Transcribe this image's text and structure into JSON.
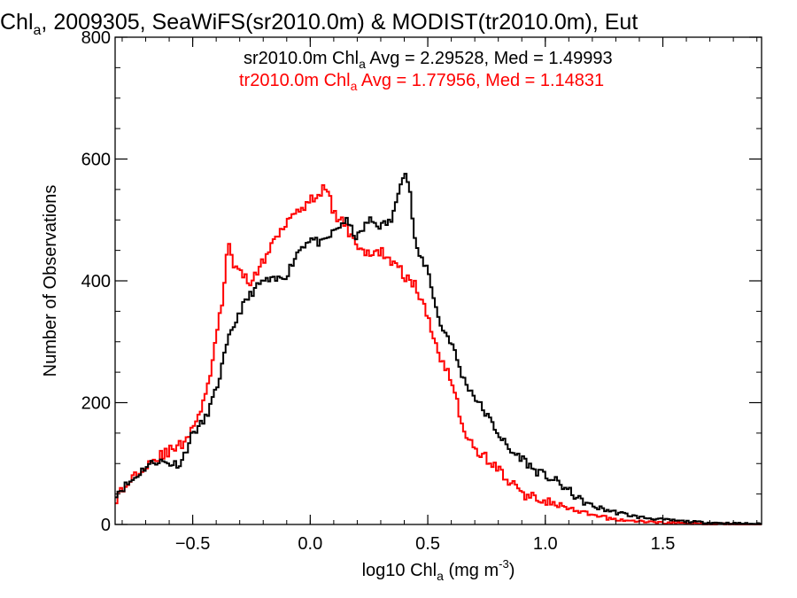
{
  "chart_data": {
    "type": "line",
    "title": {
      "prefix": "Chl",
      "sub": "a",
      "rest": ", 2009305, SeaWiFS(sr2010.0m) & MODIST(tr2010.0m), Eut"
    },
    "xlabel": {
      "prefix": "log10 Chl",
      "sub": "a",
      "rest": " (mg m",
      "sup": "-3",
      "end": ")"
    },
    "ylabel": "Number of Observations",
    "xlim": [
      -0.83,
      1.92
    ],
    "ylim": [
      0,
      800
    ],
    "xticks": [
      {
        "value": -0.5,
        "label": "−0.5"
      },
      {
        "value": 0.0,
        "label": "0.0"
      },
      {
        "value": 0.5,
        "label": "0.5"
      },
      {
        "value": 1.0,
        "label": "1.0"
      },
      {
        "value": 1.5,
        "label": "1.5"
      }
    ],
    "yticks": [
      {
        "value": 0,
        "label": "0"
      },
      {
        "value": 200,
        "label": "200"
      },
      {
        "value": 400,
        "label": "400"
      },
      {
        "value": 600,
        "label": "600"
      },
      {
        "value": 800,
        "label": "800"
      }
    ],
    "grid": false,
    "annotations": [
      {
        "prefix": "sr2010.0m Chl",
        "sub": "a",
        "rest": " Avg = 2.29528, Med = 1.49993",
        "color": "#000000"
      },
      {
        "prefix": "tr2010.0m Chl",
        "sub": "a",
        "rest": " Avg = 1.77956, Med = 1.14831",
        "color": "#ff0000"
      }
    ],
    "series": [
      {
        "color": "#000000",
        "x": [
          -0.83,
          -0.75,
          -0.7,
          -0.65,
          -0.6,
          -0.55,
          -0.5,
          -0.45,
          -0.4,
          -0.35,
          -0.3,
          -0.25,
          -0.2,
          -0.15,
          -0.1,
          -0.05,
          0.0,
          0.05,
          0.1,
          0.15,
          0.2,
          0.25,
          0.3,
          0.35,
          0.38,
          0.4,
          0.42,
          0.45,
          0.5,
          0.55,
          0.6,
          0.65,
          0.7,
          0.75,
          0.8,
          0.85,
          0.9,
          0.95,
          1.0,
          1.05,
          1.1,
          1.15,
          1.2,
          1.3,
          1.4,
          1.5,
          1.6,
          1.7,
          1.8,
          1.92
        ],
        "y": [
          50,
          75,
          95,
          105,
          100,
          100,
          150,
          170,
          220,
          300,
          350,
          380,
          400,
          400,
          410,
          450,
          470,
          460,
          480,
          500,
          470,
          500,
          490,
          500,
          560,
          580,
          560,
          450,
          420,
          330,
          300,
          240,
          210,
          180,
          150,
          120,
          110,
          90,
          80,
          70,
          55,
          40,
          30,
          20,
          12,
          8,
          5,
          3,
          2,
          1
        ],
        "jitter": 7,
        "seed": 11
      },
      {
        "color": "#ff0000",
        "x": [
          -0.83,
          -0.75,
          -0.7,
          -0.65,
          -0.6,
          -0.55,
          -0.5,
          -0.45,
          -0.42,
          -0.4,
          -0.37,
          -0.35,
          -0.32,
          -0.3,
          -0.25,
          -0.2,
          -0.15,
          -0.1,
          -0.05,
          0.0,
          0.05,
          0.08,
          0.1,
          0.15,
          0.2,
          0.25,
          0.3,
          0.35,
          0.4,
          0.45,
          0.5,
          0.55,
          0.6,
          0.65,
          0.7,
          0.75,
          0.8,
          0.85,
          0.9,
          0.95,
          1.0,
          1.05,
          1.1,
          1.2,
          1.3,
          1.4,
          1.5,
          1.7,
          1.92
        ],
        "y": [
          40,
          80,
          100,
          110,
          120,
          130,
          160,
          200,
          260,
          300,
          380,
          460,
          420,
          410,
          400,
          430,
          470,
          500,
          520,
          530,
          550,
          540,
          510,
          490,
          460,
          440,
          450,
          430,
          410,
          390,
          340,
          280,
          240,
          160,
          120,
          110,
          90,
          70,
          50,
          45,
          40,
          32,
          25,
          15,
          8,
          5,
          3,
          1,
          0
        ],
        "jitter": 9,
        "seed": 29
      }
    ]
  }
}
